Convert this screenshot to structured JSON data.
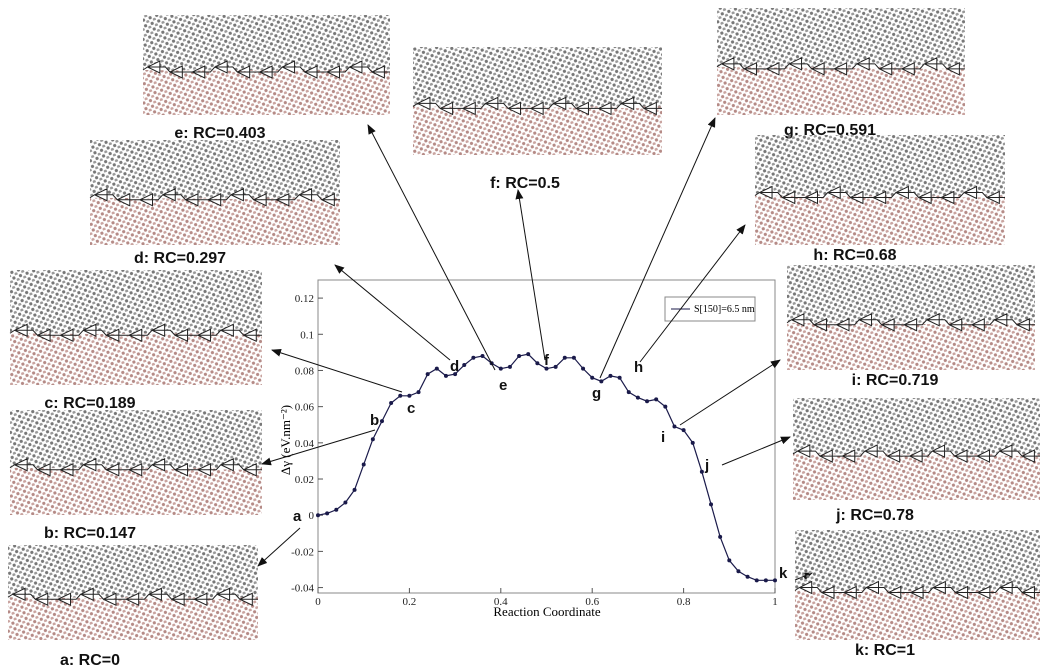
{
  "chart_data": {
    "type": "line",
    "x_label": "Reaction Coordinate",
    "y_label": "Δγ (eV.nm⁻²)",
    "x": [
      0,
      0.02,
      0.04,
      0.06,
      0.08,
      0.1,
      0.12,
      0.14,
      0.16,
      0.18,
      0.2,
      0.22,
      0.24,
      0.26,
      0.28,
      0.3,
      0.32,
      0.34,
      0.36,
      0.38,
      0.4,
      0.42,
      0.44,
      0.46,
      0.48,
      0.5,
      0.52,
      0.54,
      0.56,
      0.58,
      0.6,
      0.62,
      0.64,
      0.66,
      0.68,
      0.7,
      0.72,
      0.74,
      0.76,
      0.78,
      0.8,
      0.82,
      0.84,
      0.86,
      0.88,
      0.9,
      0.92,
      0.94,
      0.96,
      0.98,
      1
    ],
    "series": [
      {
        "name": "S[150]=6.5 nm",
        "color": "#1a1a4a",
        "values": [
          0,
          0.001,
          0.003,
          0.007,
          0.014,
          0.028,
          0.042,
          0.052,
          0.062,
          0.066,
          0.066,
          0.068,
          0.078,
          0.081,
          0.077,
          0.078,
          0.083,
          0.087,
          0.088,
          0.084,
          0.081,
          0.082,
          0.088,
          0.089,
          0.084,
          0.081,
          0.082,
          0.087,
          0.087,
          0.081,
          0.076,
          0.074,
          0.077,
          0.076,
          0.068,
          0.065,
          0.063,
          0.064,
          0.06,
          0.049,
          0.047,
          0.04,
          0.024,
          0.006,
          -0.012,
          -0.025,
          -0.031,
          -0.034,
          -0.036,
          -0.036,
          -0.036
        ]
      }
    ],
    "xlim": [
      0,
      1
    ],
    "xticks": [
      0,
      0.2,
      0.4,
      0.6,
      0.8,
      1
    ],
    "ylim": [
      -0.043,
      0.13
    ],
    "yticks": [
      -0.04,
      -0.02,
      0,
      0.02,
      0.04,
      0.06,
      0.08,
      0.1,
      0.12
    ],
    "point_labels": [
      "a",
      "b",
      "c",
      "d",
      "e",
      "f",
      "g",
      "h",
      "i",
      "j",
      "k"
    ]
  },
  "panels": [
    "a: RC=0",
    "b: RC=0.147",
    "c: RC=0.189",
    "d: RC=0.297",
    "e: RC=0.403",
    "f: RC=0.5",
    "g: RC=0.591",
    "h: RC=0.68",
    "i: RC=0.719",
    "j: RC=0.78",
    "k: RC=1"
  ]
}
